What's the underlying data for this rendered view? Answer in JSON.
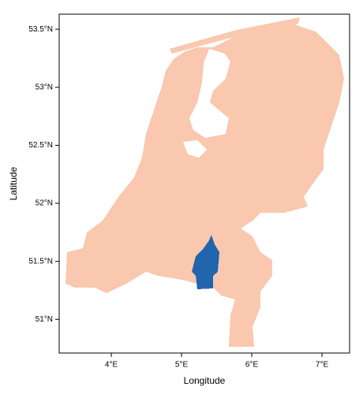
{
  "chart_data": {
    "type": "map",
    "xlabel": "Longitude",
    "ylabel": "Latitude",
    "xlim": [
      3.258,
      7.393
    ],
    "ylim": [
      50.71,
      53.63
    ],
    "xticks": [
      {
        "value": 4,
        "label": "4°E"
      },
      {
        "value": 5,
        "label": "5°E"
      },
      {
        "value": 6,
        "label": "6°E"
      },
      {
        "value": 7,
        "label": "7°E"
      }
    ],
    "yticks": [
      {
        "value": 51,
        "label": "51°N"
      },
      {
        "value": 51.5,
        "label": "51.5°N"
      },
      {
        "value": 52,
        "label": "52°N"
      },
      {
        "value": 52.5,
        "label": "52.5°N"
      },
      {
        "value": 53,
        "label": "53°N"
      },
      {
        "value": 53.5,
        "label": "53.5°N"
      }
    ],
    "land_color": "#f9c8ae",
    "highlight_color": "#2166ac"
  }
}
